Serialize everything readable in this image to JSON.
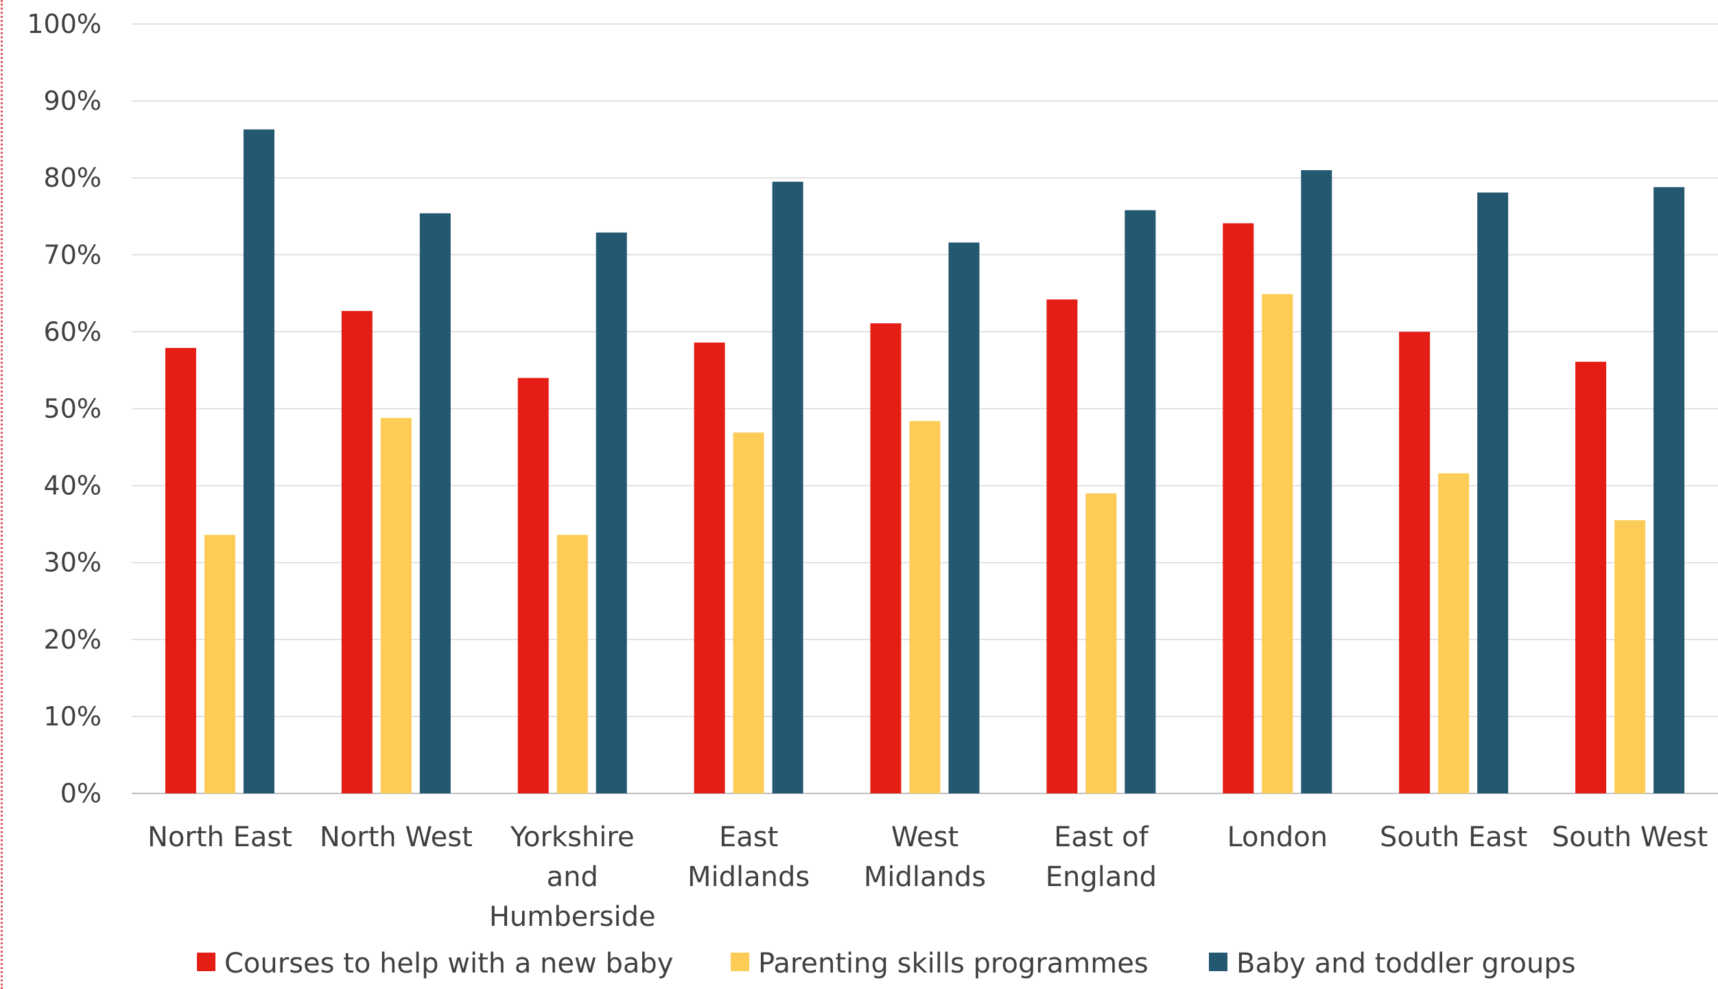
{
  "chart_data": {
    "type": "bar",
    "title": "",
    "xlabel": "",
    "ylabel": "",
    "ylim": [
      0,
      100
    ],
    "y_ticks": [
      "0%",
      "10%",
      "20%",
      "30%",
      "40%",
      "50%",
      "60%",
      "70%",
      "80%",
      "90%",
      "100%"
    ],
    "grid": true,
    "legend_position": "bottom",
    "categories": [
      "North East",
      "North West",
      "Yorkshire and Humberside",
      "East Midlands",
      "West Midlands",
      "East of England",
      "London",
      "South East",
      "South West"
    ],
    "series": [
      {
        "name": "Courses to help with a new baby",
        "color": "#e41e15",
        "values": [
          57.9,
          62.7,
          54.0,
          58.6,
          61.1,
          64.2,
          74.1,
          60.0,
          56.1
        ]
      },
      {
        "name": "Parenting skills programmes",
        "color": "#fdcc56",
        "values": [
          33.6,
          48.8,
          33.6,
          46.9,
          48.4,
          39.0,
          64.9,
          41.6,
          35.5
        ]
      },
      {
        "name": "Baby and toddler groups",
        "color": "#245770",
        "values": [
          86.3,
          75.4,
          72.9,
          79.5,
          71.6,
          75.8,
          81.0,
          78.1,
          78.8
        ]
      }
    ]
  }
}
